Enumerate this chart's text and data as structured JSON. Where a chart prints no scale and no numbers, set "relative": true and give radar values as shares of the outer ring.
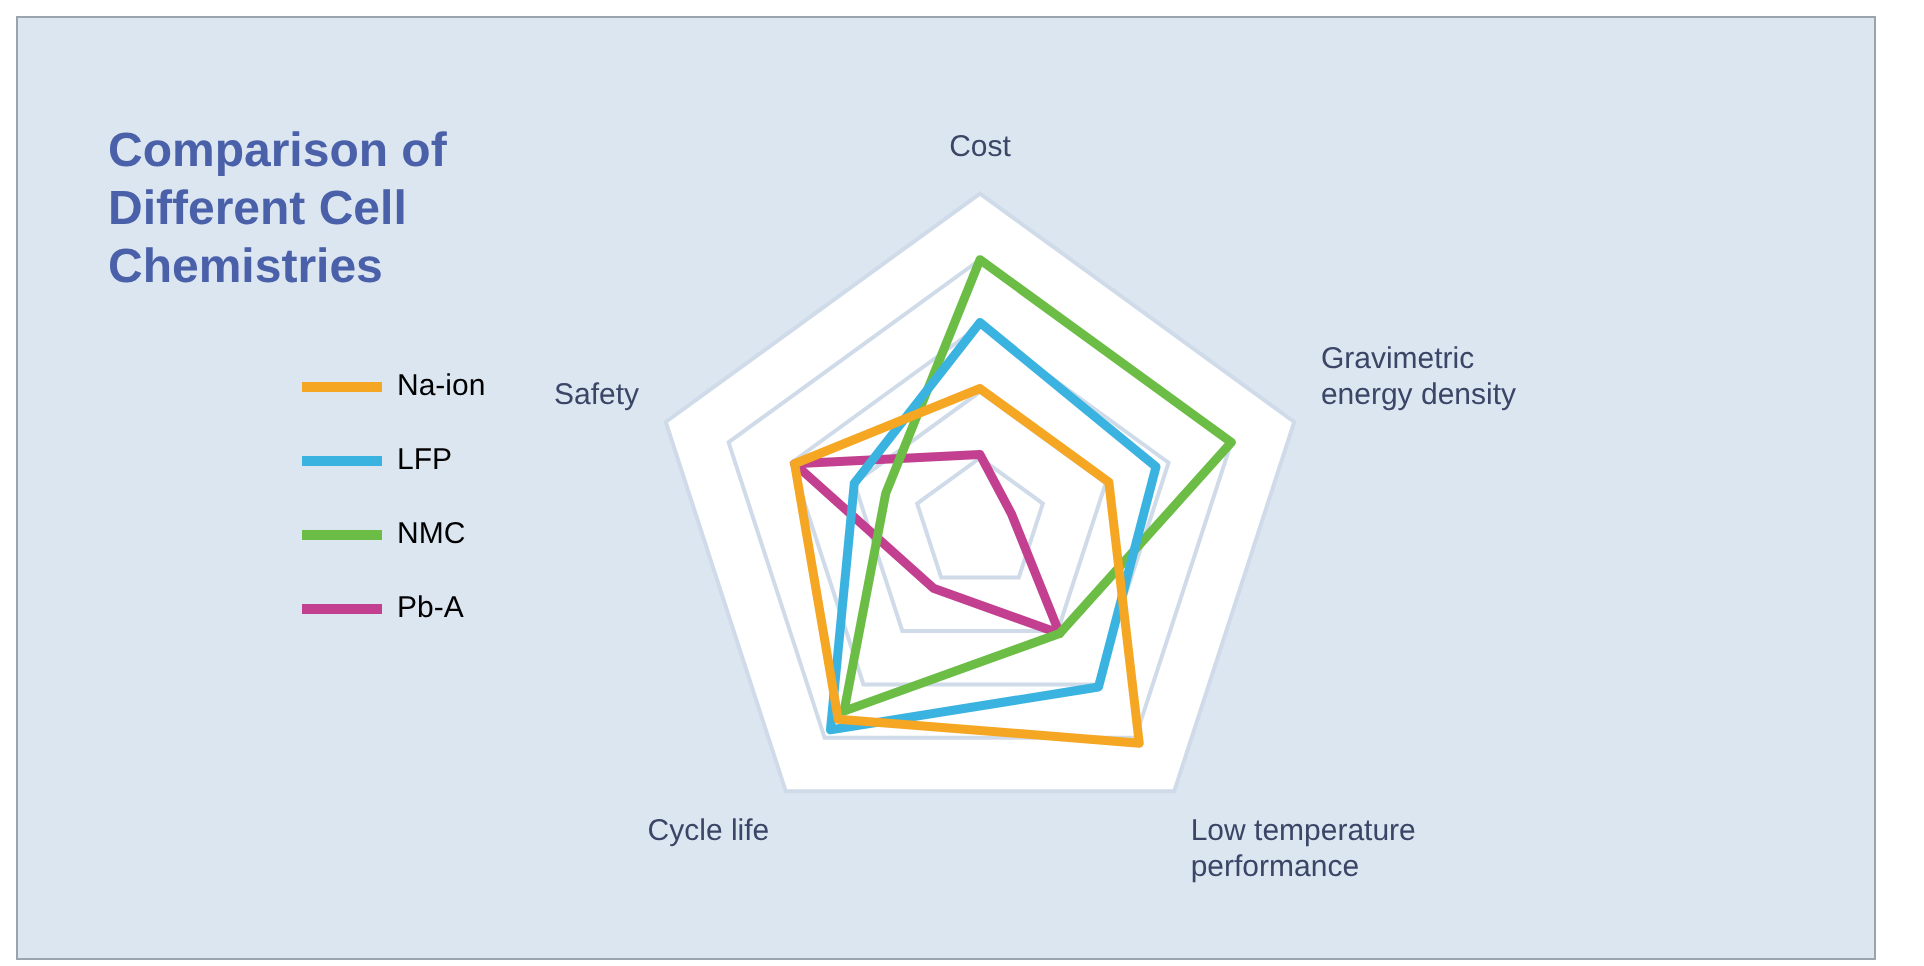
{
  "chart_data": {
    "type": "radar",
    "title": "Comparison of Different Cell Chemistries",
    "relative": true,
    "categories": [
      "Cost",
      "Gravimetric energy density",
      "Low temperature performance",
      "Cycle life",
      "Safety"
    ],
    "series": [
      {
        "name": "Na-ion",
        "color": "#f5a623",
        "values": [
          0.41,
          0.41,
          0.82,
          0.73,
          0.59
        ]
      },
      {
        "name": "LFP",
        "color": "#3bb3e0",
        "values": [
          0.61,
          0.56,
          0.61,
          0.77,
          0.4
        ]
      },
      {
        "name": "NMC",
        "color": "#6cbd45",
        "values": [
          0.8,
          0.8,
          0.41,
          0.7,
          0.3
        ]
      },
      {
        "name": "Pb-A",
        "color": "#c2408f",
        "values": [
          0.21,
          0.1,
          0.41,
          0.24,
          0.59
        ]
      }
    ],
    "grid": true,
    "legend": "left",
    "marker": "none"
  }
}
